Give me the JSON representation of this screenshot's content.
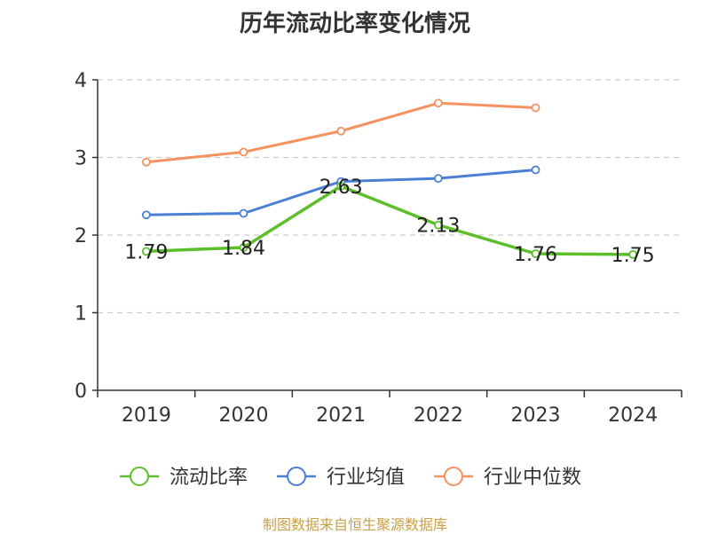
{
  "title": "历年流动比率变化情况",
  "source_note": "制图数据来自恒生聚源数据库",
  "chart_data": {
    "type": "line",
    "title": "历年流动比率变化情况",
    "categories": [
      "2019",
      "2020",
      "2021",
      "2022",
      "2023",
      "2024"
    ],
    "ylim": [
      0,
      4
    ],
    "yticks": [
      0,
      1,
      2,
      3,
      4
    ],
    "grid": true,
    "legend_position": "bottom",
    "series": [
      {
        "name": "流动比率",
        "color": "#5cbf2a",
        "values": [
          1.79,
          1.84,
          2.63,
          2.13,
          1.76,
          1.75
        ],
        "data_labels": [
          "1.79",
          "1.84",
          "2.63",
          "2.13",
          "1.76",
          "1.75"
        ]
      },
      {
        "name": "行业均值",
        "color": "#4a7fd4",
        "values": [
          2.26,
          2.28,
          2.69,
          2.73,
          2.84,
          null
        ]
      },
      {
        "name": "行业中位数",
        "color": "#f59260",
        "values": [
          2.94,
          3.07,
          3.34,
          3.7,
          3.64,
          null
        ]
      }
    ]
  }
}
